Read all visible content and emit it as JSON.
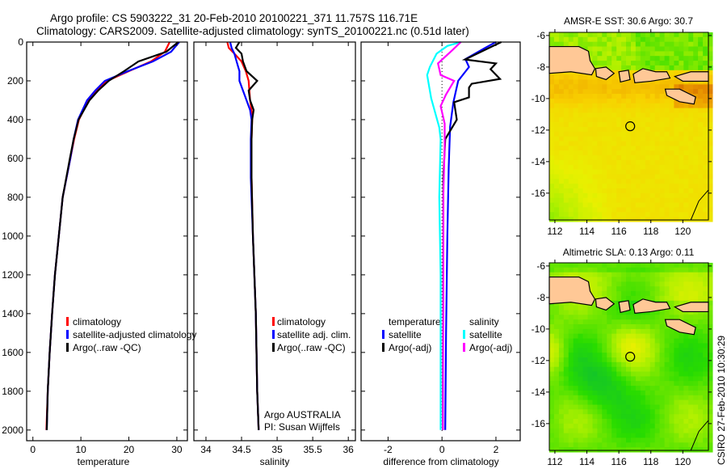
{
  "header": {
    "line1": "Argo profile: CS 5903222_31 20-Feb-2010 20100221_371 11.757S 116.71E",
    "line2": "Climatology: CARS2009. Satellite-adjusted climatology: synTS_20100221.nc (0.51d later)"
  },
  "footer_stamp": "CSIRO 27-Feb-2010 10:30:29",
  "colors": {
    "climatology": "#ff0000",
    "satellite": "#0000ff",
    "argo": "#000000",
    "sal_satellite": "#00ffff",
    "sal_argo": "#ff00ff"
  },
  "chart_data": [
    {
      "type": "line",
      "id": "temperature",
      "xlabel": "temperature",
      "ylabel": "",
      "xlim": [
        -1.3,
        32.2
      ],
      "ylim": [
        2055,
        0
      ],
      "xticks": [
        0,
        10,
        20,
        30
      ],
      "yticks": [
        0,
        200,
        400,
        600,
        800,
        1000,
        1200,
        1400,
        1600,
        1800,
        2000
      ],
      "legend": [
        "climatology",
        "satellite-adjusted climatology",
        "Argo(..raw -QC)"
      ],
      "legend_placement": "lower-right",
      "depth": [
        0,
        50,
        100,
        150,
        200,
        250,
        300,
        400,
        500,
        600,
        800,
        1000,
        1200,
        1400,
        1600,
        1800,
        2000
      ],
      "series": [
        {
          "name": "climatology",
          "color": "#ff0000",
          "values": [
            28.5,
            27.5,
            24.6,
            20,
            15.5,
            13.3,
            11.6,
            9.6,
            8.6,
            7.8,
            6.2,
            5.4,
            4.6,
            4.0,
            3.5,
            3.1,
            2.8
          ]
        },
        {
          "name": "satellite-adjusted climatology",
          "color": "#0000ff",
          "values": [
            30.5,
            28.8,
            25,
            19.8,
            15,
            13,
            11.3,
            9.4,
            8.5,
            7.8,
            6.2,
            5.4,
            4.6,
            4.0,
            3.5,
            3.1,
            2.9
          ]
        },
        {
          "name": "Argo(..raw -QC)",
          "color": "#000000",
          "values": [
            30.3,
            27.8,
            22,
            19,
            15.8,
            13.6,
            11.8,
            9.5,
            8.5,
            7.7,
            6.2,
            5.4,
            4.6,
            4.0,
            3.5,
            3.1,
            2.9
          ]
        }
      ]
    },
    {
      "type": "line",
      "id": "salinity",
      "xlabel": "salinity",
      "xlim": [
        33.83,
        36.1
      ],
      "ylim": [
        2055,
        0
      ],
      "xticks": [
        34,
        34.5,
        35,
        35.5,
        36
      ],
      "legend": [
        "climatology",
        "satellite adj. clim.",
        "Argo(..raw -QC)"
      ],
      "legend_placement": "lower-right",
      "annotation": [
        "Argo AUSTRALIA",
        "PI: Susan Wijffels"
      ],
      "depth": [
        0,
        30,
        60,
        100,
        150,
        200,
        250,
        300,
        350,
        400,
        500,
        700,
        1000,
        1400,
        1800,
        2000
      ],
      "series": [
        {
          "name": "climatology",
          "color": "#ff0000",
          "values": [
            34.3,
            34.32,
            34.4,
            34.5,
            34.56,
            34.6,
            34.61,
            34.62,
            34.64,
            34.65,
            34.64,
            34.64,
            34.66,
            34.7,
            34.72,
            34.74
          ]
        },
        {
          "name": "satellite adj. clim.",
          "color": "#0000ff",
          "values": [
            34.34,
            34.36,
            34.4,
            34.43,
            34.47,
            34.47,
            34.52,
            34.57,
            34.62,
            34.64,
            34.63,
            34.63,
            34.66,
            34.7,
            34.72,
            34.74
          ]
        },
        {
          "name": "Argo(..raw -QC)",
          "color": "#000000",
          "values": [
            34.47,
            34.42,
            34.5,
            34.52,
            34.57,
            34.72,
            34.6,
            34.62,
            34.67,
            34.65,
            34.64,
            34.64,
            34.66,
            34.7,
            34.72,
            34.74
          ]
        }
      ]
    },
    {
      "type": "line",
      "id": "difference",
      "xlabel": "difference from climatology",
      "xlim": [
        -3.0,
        2.9
      ],
      "ylim": [
        2055,
        0
      ],
      "xticks": [
        -2,
        0,
        2
      ],
      "legend_groups": [
        {
          "title": "temperature",
          "items": [
            "satellite",
            "Argo(-adj)"
          ]
        },
        {
          "title": "salinity",
          "items": [
            "satellite",
            "Argo(-adj)"
          ]
        }
      ],
      "series": [
        {
          "name": "temperature satellite",
          "color": "#0000ff",
          "depth": [
            0,
            30,
            88,
            129,
            200,
            312,
            437,
            645,
            1000,
            1500,
            2000
          ],
          "values": [
            2.0,
            1.6,
            0.87,
            1.0,
            0.6,
            0.42,
            0.3,
            0.25,
            0.2,
            0.15,
            0.12
          ]
        },
        {
          "name": "temperature Argo(-adj)",
          "color": "#000000",
          "depth": [
            0,
            20,
            90,
            110,
            140,
            190,
            215,
            235,
            285,
            310,
            400,
            500,
            700,
            1000,
            2000
          ],
          "values": [
            2.2,
            1.9,
            0.85,
            2.0,
            1.8,
            2.15,
            1.1,
            1.0,
            1.0,
            0.45,
            0.55,
            0.12,
            0.05,
            0.05,
            0.03
          ]
        },
        {
          "name": "salinity satellite",
          "color": "#00ffff",
          "depth": [
            0,
            20,
            60,
            129,
            170,
            290,
            440,
            500,
            800,
            1200,
            2000
          ],
          "values": [
            0.7,
            0.2,
            -0.2,
            -0.45,
            -0.55,
            -0.4,
            -0.1,
            -0.05,
            -0.1,
            -0.05,
            -0.05
          ]
        },
        {
          "name": "salinity Argo(-adj)",
          "color": "#ff00ff",
          "depth": [
            0,
            40,
            110,
            170,
            200,
            270,
            330,
            420,
            530,
            800,
            1200,
            2000
          ],
          "values": [
            0.7,
            0.4,
            -0.15,
            -0.05,
            0.45,
            0.15,
            -0.05,
            0.1,
            0.1,
            0.05,
            0.05,
            0.03
          ]
        }
      ]
    },
    {
      "type": "heatmap",
      "id": "sst-map",
      "title": "AMSR-E SST: 30.6 Argo: 30.7",
      "xlim": [
        111.65,
        121.6
      ],
      "ylim": [
        -17.7,
        -5.8
      ],
      "xticks": [
        112,
        114,
        116,
        118,
        120
      ],
      "yticks": [
        -6,
        -8,
        -10,
        -12,
        -14,
        -16
      ],
      "argo_position": [
        116.71,
        -11.757
      ]
    },
    {
      "type": "heatmap",
      "id": "sla-map",
      "title": "Altimetric SLA: 0.13 Argo: 0.11",
      "xlim": [
        111.65,
        121.6
      ],
      "ylim": [
        -17.7,
        -5.8
      ],
      "xticks": [
        112,
        114,
        116,
        118,
        120
      ],
      "yticks": [
        -6,
        -8,
        -10,
        -12,
        -14,
        -16
      ],
      "argo_position": [
        116.71,
        -11.757
      ]
    }
  ]
}
